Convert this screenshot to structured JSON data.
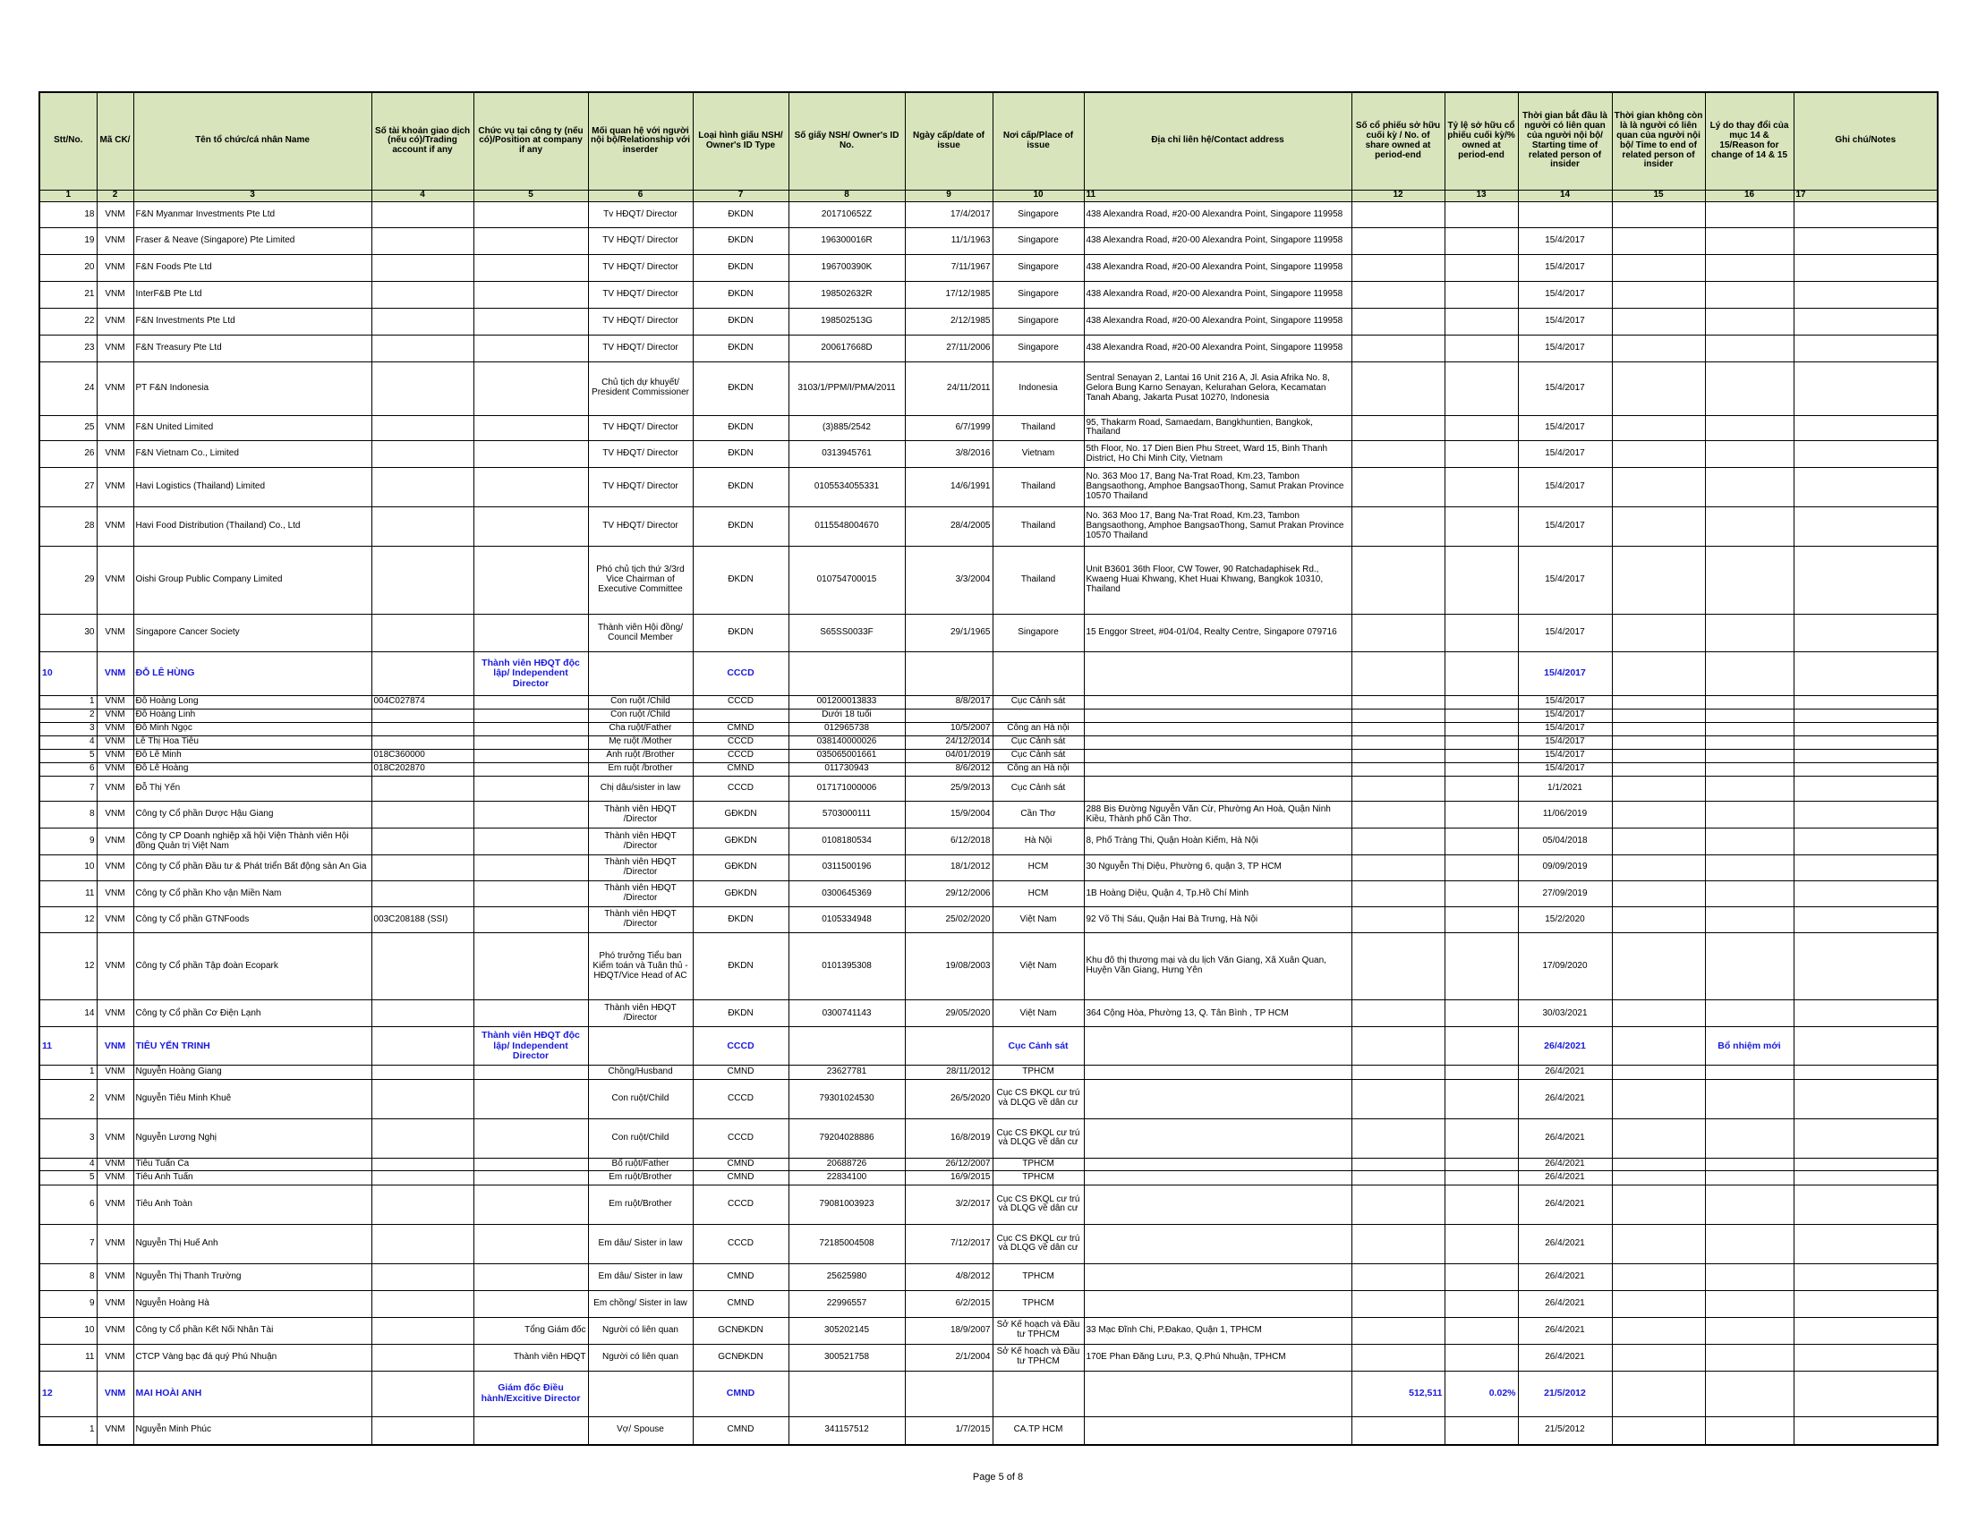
{
  "table": {
    "header": [
      "Stt/No.",
      "Mã CK/",
      "Tên tổ chức/cá nhân Name",
      "Số tài khoản giao dịch (nếu có)/Trading account if any",
      "Chức vụ tại công ty (nếu có)/Position at company if any",
      "Mối quan hệ với người nội bộ/Relationship với inserder",
      "Loại hình giấu NSH/ Owner's ID Type",
      "Số giấy NSH/ Owner's ID No.",
      "Ngày cấp/date of issue",
      "Nơi cấp/Place of issue",
      "Địa chỉ liên hệ/Contact address",
      "Số cổ phiếu sở hữu cuối kỳ / No. of share owned at period-end",
      "Tỷ lệ sở hữu cổ phiếu cuối kỳ/% owned at period-end",
      "Thời gian bắt đầu là người có liên quan của người nội bộ/ Starting time of related person of insider",
      "Thời gian không còn là là người có liên quan của người nội bộ/ Time to end of related person of insider",
      "Lý do thay đổi của mục 14 & 15/Reason for change of 14 & 15",
      "Ghi chú/Notes"
    ],
    "column_numbers": [
      "1",
      "2",
      "3",
      "4",
      "5",
      "6",
      "7",
      "8",
      "9",
      "10",
      "11",
      "12",
      "13",
      "14",
      "15",
      "16",
      "17"
    ],
    "rows": [
      [
        "18",
        "VNM",
        "F&N Myanmar Investments Pte Ltd",
        null,
        null,
        "Tv HĐQT/ Director",
        "ĐKDN",
        "201710652Z",
        "17/4/2017",
        "Singapore",
        "438 Alexandra Road, #20-00 Alexandra Point, Singapore 119958",
        null,
        null,
        null,
        null,
        null,
        null
      ],
      [
        "19",
        "VNM",
        "Fraser & Neave (Singapore) Pte Limited",
        null,
        null,
        "TV HĐQT/ Director",
        "ĐKDN",
        "196300016R",
        "11/1/1963",
        "Singapore",
        "438 Alexandra Road, #20-00 Alexandra Point, Singapore 119958",
        null,
        null,
        "15/4/2017",
        null,
        null,
        null
      ],
      [
        "20",
        "VNM",
        "F&N Foods Pte Ltd",
        null,
        null,
        "TV HĐQT/ Director",
        "ĐKDN",
        "196700390K",
        "7/11/1967",
        "Singapore",
        "438 Alexandra Road, #20-00 Alexandra Point, Singapore 119958",
        null,
        null,
        "15/4/2017",
        null,
        null,
        null
      ],
      [
        "21",
        "VNM",
        "InterF&B Pte Ltd",
        null,
        null,
        "TV HĐQT/ Director",
        "ĐKDN",
        "198502632R",
        "17/12/1985",
        "Singapore",
        "438 Alexandra Road, #20-00 Alexandra Point, Singapore 119958",
        null,
        null,
        "15/4/2017",
        null,
        null,
        null
      ],
      [
        "22",
        "VNM",
        "F&N Investments Pte Ltd",
        null,
        null,
        "TV HĐQT/ Director",
        "ĐKDN",
        "198502513G",
        "2/12/1985",
        "Singapore",
        "438 Alexandra Road, #20-00 Alexandra Point, Singapore 119958",
        null,
        null,
        "15/4/2017",
        null,
        null,
        null
      ],
      [
        "23",
        "VNM",
        "F&N Treasury Pte Ltd",
        null,
        null,
        "TV HĐQT/ Director",
        "ĐKDN",
        "200617668D",
        "27/11/2006",
        "Singapore",
        "438 Alexandra Road, #20-00 Alexandra Point, Singapore 119958",
        null,
        null,
        "15/4/2017",
        null,
        null,
        null
      ],
      [
        "24",
        "VNM",
        "PT F&N Indonesia",
        null,
        null,
        "Chủ tịch dự khuyết/ President Commissioner",
        "ĐKDN",
        "3103/1/PPM/I/PMA/2011",
        "24/11/2011",
        "Indonesia",
        "Sentral Senayan 2, Lantai 16 Unit 216 A, Jl. Asia Afrika No. 8, Gelora Bung Karno Senayan, Kelurahan Gelora, Kecamatan Tanah Abang, Jakarta Pusat 10270, Indonesia",
        null,
        null,
        "15/4/2017",
        null,
        null,
        null
      ],
      [
        "25",
        "VNM",
        "F&N United Limited",
        null,
        null,
        "TV HĐQT/ Director",
        "ĐKDN",
        "(3)885/2542",
        "6/7/1999",
        "Thailand",
        "95, Thakarm Road, Samaedam, Bangkhuntien, Bangkok, Thailand",
        null,
        null,
        "15/4/2017",
        null,
        null,
        null
      ],
      [
        "26",
        "VNM",
        "F&N Vietnam Co., Limited",
        null,
        null,
        "TV HĐQT/ Director",
        "ĐKDN",
        "0313945761",
        "3/8/2016",
        "Vietnam",
        "5th Floor, No. 17 Dien Bien Phu Street, Ward 15, Binh Thanh District, Ho Chi Minh City, Vietnam",
        null,
        null,
        "15/4/2017",
        null,
        null,
        null
      ],
      [
        "27",
        "VNM",
        "Havi Logistics (Thailand) Limited",
        null,
        null,
        "TV HĐQT/ Director",
        "ĐKDN",
        "0105534055331",
        "14/6/1991",
        "Thailand",
        "No. 363 Moo 17, Bang Na-Trat Road, Km.23, Tambon Bangsaothong, Amphoe BangsaoThong, Samut Prakan Province 10570 Thailand",
        null,
        null,
        "15/4/2017",
        null,
        null,
        null
      ],
      [
        "28",
        "VNM",
        "Havi Food Distribution (Thailand) Co., Ltd",
        null,
        null,
        "TV HĐQT/ Director",
        "ĐKDN",
        "0115548004670",
        "28/4/2005",
        "Thailand",
        "No. 363 Moo 17, Bang Na-Trat Road, Km.23, Tambon Bangsaothong, Amphoe BangsaoThong, Samut Prakan Province 10570 Thailand",
        null,
        null,
        "15/4/2017",
        null,
        null,
        null
      ],
      [
        "29",
        "VNM",
        "Oishi Group Public Company Limited",
        null,
        null,
        "Phó chủ tịch thứ 3/3rd Vice Chairman of Executive Committee",
        "ĐKDN",
        "010754700015",
        "3/3/2004",
        "Thailand",
        "Unit B3601 36th Floor, CW Tower, 90 Ratchadaphisek Rd., Kwaeng Huai Khwang, Khet Huai Khwang, Bangkok 10310, Thailand",
        null,
        null,
        "15/4/2017",
        null,
        null,
        null
      ],
      [
        "30",
        "VNM",
        "Singapore Cancer Society",
        null,
        null,
        "Thành viên Hội đồng/ Council Member",
        "ĐKDN",
        "S65SS0033F",
        "29/1/1965",
        "Singapore",
        "15 Enggor Street, #04-01/04, Realty Centre, Singapore 079716",
        null,
        null,
        "15/4/2017",
        null,
        null,
        null
      ],
      [
        "10",
        "VNM",
        "ĐỖ LÊ HÙNG",
        null,
        "Thành viên HĐQT độc lập/ Independent Director",
        null,
        "CCCD",
        null,
        null,
        null,
        null,
        null,
        null,
        "15/4/2017",
        null,
        null,
        null
      ],
      [
        "1",
        "VNM",
        "Đỗ Hoàng Long",
        "004C027874",
        null,
        "Con ruột /Child",
        "CCCD",
        "001200013833",
        "8/8/2017",
        "Cục Cảnh sát",
        null,
        null,
        null,
        "15/4/2017",
        null,
        null,
        null
      ],
      [
        "2",
        "VNM",
        "Đỗ Hoàng Linh",
        null,
        null,
        "Con ruột /Child",
        null,
        "Dưới 18 tuổi",
        null,
        null,
        null,
        null,
        null,
        "15/4/2017",
        null,
        null,
        null
      ],
      [
        "3",
        "VNM",
        "Đỗ Minh Ngọc",
        null,
        null,
        "Cha ruột/Father",
        "CMND",
        "012965738",
        "10/5/2007",
        "Công an Hà nội",
        null,
        null,
        null,
        "15/4/2017",
        null,
        null,
        null
      ],
      [
        "4",
        "VNM",
        "Lê Thị Hoa Tiêu",
        null,
        null,
        "Mẹ ruột /Mother",
        "CCCD",
        "038140000026",
        "24/12/2014",
        "Cục Cảnh sát",
        null,
        null,
        null,
        "15/4/2017",
        null,
        null,
        null
      ],
      [
        "5",
        "VNM",
        "Đỗ Lê Minh",
        "018C360000",
        null,
        "Anh ruột /Brother",
        "CCCD",
        "035065001661",
        "04/01/2019",
        "Cục Cảnh sát",
        null,
        null,
        null,
        "15/4/2017",
        null,
        null,
        null
      ],
      [
        "6",
        "VNM",
        "Đỗ Lê Hoàng",
        "018C202870",
        null,
        "Em ruột /brother",
        "CMND",
        "011730943",
        "8/6/2012",
        "Công an Hà nội",
        null,
        null,
        null,
        "15/4/2017",
        null,
        null,
        null
      ],
      [
        "7",
        "VNM",
        "Đỗ Thị Yến",
        null,
        null,
        "Chị dâu/sister in law",
        "CCCD",
        "017171000006",
        "25/9/2013",
        "Cục Cảnh sát",
        null,
        null,
        null,
        "1/1/2021",
        null,
        null,
        null
      ],
      [
        "8",
        "VNM",
        "Công ty Cổ phần Dược Hậu Giang",
        null,
        null,
        "Thành viên HĐQT /Director",
        "GĐKDN",
        "5703000111",
        "15/9/2004",
        "Cần Thơ",
        "288 Bis Đường Nguyễn Văn Cừ, Phường An Hoà, Quận Ninh Kiều, Thành phố Cần Thơ.",
        null,
        null,
        "11/06/2019",
        null,
        null,
        null
      ],
      [
        "9",
        "VNM",
        "Công ty CP Doanh nghiệp xã hội Viện Thành viên Hội đồng Quản trị Việt Nam",
        null,
        null,
        "Thành viên HĐQT /Director",
        "GĐKDN",
        "0108180534",
        "6/12/2018",
        "Hà Nội",
        "8, Phố Tràng Thi, Quận Hoàn Kiếm, Hà Nội",
        null,
        null,
        "05/04/2018",
        null,
        null,
        null
      ],
      [
        "10",
        "VNM",
        "Công ty Cổ phần Đầu tư & Phát triển Bất động sản An Gia",
        null,
        null,
        "Thành viên HĐQT /Director",
        "GĐKDN",
        "0311500196",
        "18/1/2012",
        "HCM",
        "30 Nguyễn Thị Diệu, Phường 6, quận 3, TP HCM",
        null,
        null,
        "09/09/2019",
        null,
        null,
        null
      ],
      [
        "11",
        "VNM",
        "Công ty Cổ phần Kho vận Miền Nam",
        null,
        null,
        "Thành viên HĐQT /Director",
        "GĐKDN",
        "0300645369",
        "29/12/2006",
        "HCM",
        "1B Hoàng Diệu, Quận 4, Tp.Hồ Chí Minh",
        null,
        null,
        "27/09/2019",
        null,
        null,
        null
      ],
      [
        "12",
        "VNM",
        "Công ty Cổ phần GTNFoods",
        "003C208188 (SSI)",
        null,
        "Thành viên HĐQT /Director",
        "ĐKDN",
        "0105334948",
        "25/02/2020",
        "Việt Nam",
        "92 Võ Thị Sáu, Quận Hai Bà Trưng, Hà Nội",
        null,
        null,
        "15/2/2020",
        null,
        null,
        null
      ],
      [
        "12",
        "VNM",
        "Công ty Cổ phần Tập đoàn Ecopark",
        null,
        null,
        "Phó trưởng Tiểu ban Kiểm toán và Tuân thủ - HĐQT/Vice Head of AC",
        "ĐKDN",
        "0101395308",
        "19/08/2003",
        "Việt Nam",
        "Khu đô thị thương mại và du lịch Văn Giang, Xã Xuân Quan, Huyện Văn Giang, Hưng Yên",
        null,
        null,
        "17/09/2020",
        null,
        null,
        null
      ],
      [
        "14",
        "VNM",
        "Công ty Cổ phần Cơ Điện Lạnh",
        null,
        null,
        "Thành viên HĐQT /Director",
        "ĐKDN",
        "0300741143",
        "29/05/2020",
        "Việt Nam",
        "364 Cộng Hòa, Phường 13, Q. Tân Bình , TP HCM",
        null,
        null,
        "30/03/2021",
        null,
        null,
        null
      ],
      [
        "11",
        "VNM",
        "TIÊU YẾN TRINH",
        null,
        "Thành viên HĐQT độc lập/ Independent Director",
        null,
        "CCCD",
        null,
        null,
        "Cục Cảnh sát",
        null,
        null,
        null,
        "26/4/2021",
        null,
        "Bổ nhiệm mới",
        null
      ],
      [
        "1",
        "VNM",
        "Nguyễn Hoàng Giang",
        null,
        null,
        "Chồng/Husband",
        "CMND",
        "23627781",
        "28/11/2012",
        "TPHCM",
        null,
        null,
        null,
        "26/4/2021",
        null,
        null,
        null
      ],
      [
        "2",
        "VNM",
        "Nguyễn Tiêu Minh Khuê",
        null,
        null,
        "Con ruột/Child",
        "CCCD",
        "79301024530",
        "26/5/2020",
        "Cục CS ĐKQL cư trú và DLQG về dân cư",
        null,
        null,
        null,
        "26/4/2021",
        null,
        null,
        null
      ],
      [
        "3",
        "VNM",
        "Nguyễn Lương Nghị",
        null,
        null,
        "Con ruột/Child",
        "CCCD",
        "79204028886",
        "16/8/2019",
        "Cục CS ĐKQL cư trú và DLQG về dân cư",
        null,
        null,
        null,
        "26/4/2021",
        null,
        null,
        null
      ],
      [
        "4",
        "VNM",
        "Tiêu Tuấn Ca",
        null,
        null,
        "Bố ruột/Father",
        "CMND",
        "20688726",
        "26/12/2007",
        "TPHCM",
        null,
        null,
        null,
        "26/4/2021",
        null,
        null,
        null
      ],
      [
        "5",
        "VNM",
        "Tiêu Anh Tuấn",
        null,
        null,
        "Em ruột/Brother",
        "CMND",
        "22834100",
        "16/9/2015",
        "TPHCM",
        null,
        null,
        null,
        "26/4/2021",
        null,
        null,
        null
      ],
      [
        "6",
        "VNM",
        "Tiêu Anh Toàn",
        null,
        null,
        "Em ruột/Brother",
        "CCCD",
        "79081003923",
        "3/2/2017",
        "Cục CS ĐKQL cư trú và DLQG về dân cư",
        null,
        null,
        null,
        "26/4/2021",
        null,
        null,
        null
      ],
      [
        "7",
        "VNM",
        "Nguyễn Thị Huế Anh",
        null,
        null,
        "Em dâu/ Sister in law",
        "CCCD",
        "72185004508",
        "7/12/2017",
        "Cục CS ĐKQL cư trú và DLQG về dân cư",
        null,
        null,
        null,
        "26/4/2021",
        null,
        null,
        null
      ],
      [
        "8",
        "VNM",
        "Nguyễn Thị Thanh Trường",
        null,
        null,
        "Em dâu/ Sister in law",
        "CMND",
        "25625980",
        "4/8/2012",
        "TPHCM",
        null,
        null,
        null,
        "26/4/2021",
        null,
        null,
        null
      ],
      [
        "9",
        "VNM",
        "Nguyễn Hoàng Hà",
        null,
        null,
        "Em chồng/ Sister in law",
        "CMND",
        "22996557",
        "6/2/2015",
        "TPHCM",
        null,
        null,
        null,
        "26/4/2021",
        null,
        null,
        null
      ],
      [
        "10",
        "VNM",
        "Công ty Cổ phần Kết Nối Nhân Tài",
        null,
        "Tổng Giám đốc",
        "Người có liên quan",
        "GCNĐKDN",
        "305202145",
        "18/9/2007",
        "Sở Kế hoạch và Đầu tư TPHCM",
        "33 Mạc Đĩnh Chi, P.Đakao, Quận 1, TPHCM",
        null,
        null,
        "26/4/2021",
        null,
        null,
        null
      ],
      [
        "11",
        "VNM",
        "CTCP Vàng bạc đá quý Phú Nhuận",
        null,
        "Thành viên HĐQT",
        "Người có liên quan",
        "GCNĐKDN",
        "300521758",
        "2/1/2004",
        "Sở Kế hoạch và Đầu tư TPHCM",
        "170E Phan Đăng Lưu, P.3, Q.Phú Nhuận, TPHCM",
        null,
        null,
        "26/4/2021",
        null,
        null,
        null
      ],
      [
        "12",
        "VNM",
        "MAI HOÀI ANH",
        null,
        "Giám đốc Điều hành/Excitive Director",
        null,
        "CMND",
        null,
        null,
        null,
        null,
        "512,511",
        "0.02%",
        "21/5/2012",
        null,
        null,
        null
      ],
      [
        "1",
        "VNM",
        "Nguyễn Minh Phúc",
        null,
        null,
        "Vợ/ Spouse",
        "CMND",
        "341157512",
        "1/7/2015",
        "CA.TP HCM",
        null,
        null,
        null,
        "21/5/2012",
        null,
        null,
        null
      ]
    ]
  },
  "footer": "Page 5 of 8"
}
